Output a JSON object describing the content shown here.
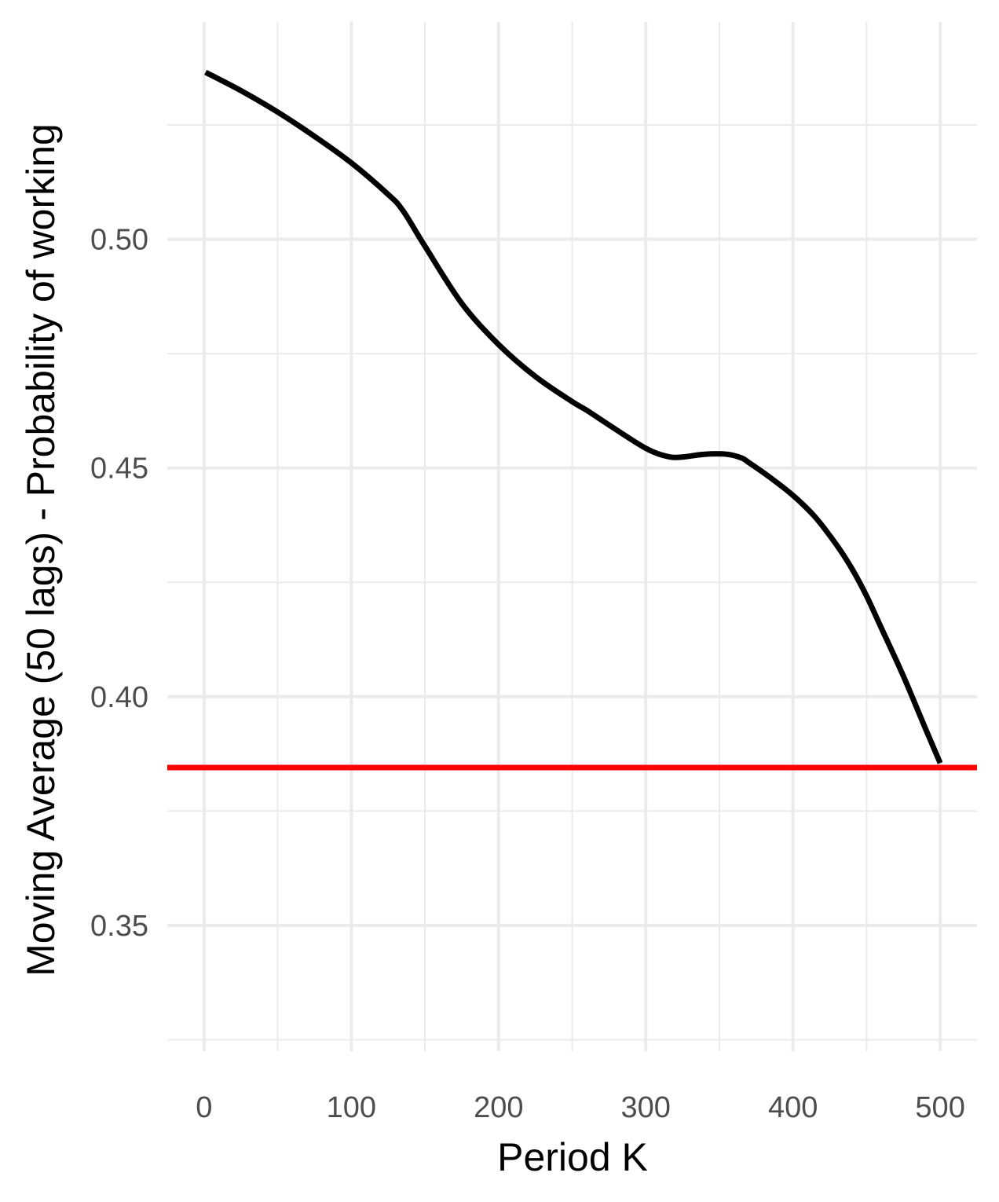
{
  "chart_data": {
    "type": "line",
    "title": "",
    "xlabel": "Period K",
    "ylabel": "Moving Average (50 lags) - Probability of working",
    "xlim": [
      -25,
      525
    ],
    "ylim": [
      0.3225,
      0.5475
    ],
    "x_ticks": [
      0,
      100,
      200,
      300,
      400,
      500
    ],
    "x_tick_labels": [
      "0",
      "100",
      "200",
      "300",
      "400",
      "500"
    ],
    "y_ticks": [
      0.35,
      0.4,
      0.45,
      0.5
    ],
    "y_tick_labels": [
      "0.35",
      "0.40",
      "0.45",
      "0.50"
    ],
    "grid": true,
    "series": [
      {
        "color": "#000000",
        "x": [
          1,
          25,
          50,
          75,
          100,
          125,
          135,
          150,
          175,
          200,
          225,
          250,
          260,
          275,
          300,
          315,
          325,
          340,
          355,
          365,
          370,
          385,
          400,
          415,
          430,
          440,
          450,
          460,
          475,
          490,
          500
        ],
        "y": [
          0.5365,
          0.5325,
          0.5278,
          0.5225,
          0.5167,
          0.5098,
          0.5063,
          0.4985,
          0.486,
          0.477,
          0.47,
          0.4645,
          0.4626,
          0.4594,
          0.4543,
          0.4525,
          0.4524,
          0.453,
          0.453,
          0.4522,
          0.4512,
          0.4478,
          0.444,
          0.4393,
          0.433,
          0.428,
          0.422,
          0.415,
          0.4045,
          0.393,
          0.3855
        ]
      }
    ],
    "reference_line": {
      "orientation": "horizontal",
      "y": 0.3845,
      "color": "#ff0000"
    }
  }
}
